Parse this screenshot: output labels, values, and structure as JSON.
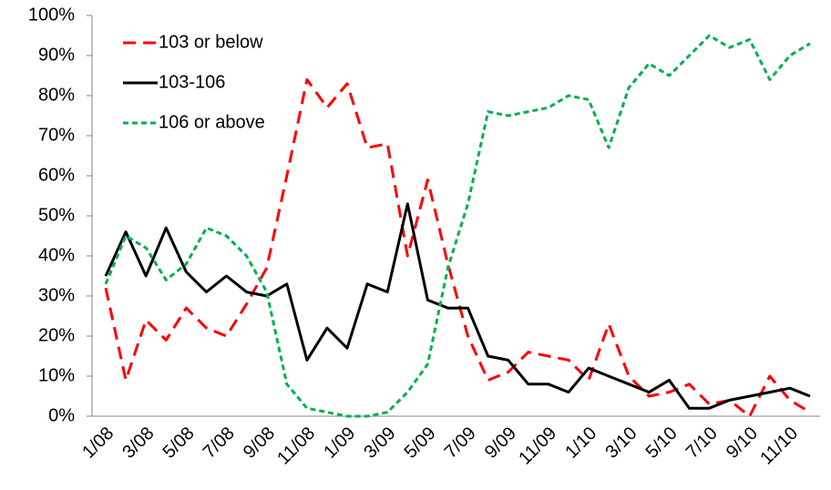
{
  "chart_data": {
    "type": "line",
    "categories": [
      "1/08",
      null,
      "3/08",
      null,
      "5/08",
      null,
      "7/08",
      null,
      "9/08",
      null,
      "11/08",
      null,
      "1/09",
      null,
      "3/09",
      null,
      "5/09",
      null,
      "7/09",
      null,
      "9/09",
      null,
      "11/09",
      null,
      "1/10",
      null,
      "3/10",
      null,
      "5/10",
      null,
      "7/10",
      null,
      "9/10",
      null,
      "11/10",
      null
    ],
    "series": [
      {
        "name": "103 or below",
        "color": "#ff0000",
        "dash": "dashed",
        "values": [
          32,
          9,
          24,
          19,
          27,
          22,
          20,
          28,
          37,
          60,
          84,
          77,
          83,
          67,
          68,
          40,
          59,
          38,
          20,
          9,
          11,
          16,
          15,
          14,
          9,
          23,
          10,
          5,
          6,
          8,
          3,
          4,
          0,
          10,
          4,
          1
        ]
      },
      {
        "name": "103-106",
        "color": "#000000",
        "dash": "solid",
        "values": [
          35,
          46,
          35,
          47,
          36,
          31,
          35,
          31,
          30,
          33,
          14,
          22,
          17,
          33,
          31,
          53,
          29,
          27,
          27,
          15,
          14,
          8,
          8,
          6,
          12,
          10,
          8,
          6,
          9,
          2,
          2,
          4,
          5,
          6,
          7,
          5
        ]
      },
      {
        "name": "106 or above",
        "color": "#00b050",
        "dash": "dotted",
        "values": [
          33,
          45,
          42,
          34,
          38,
          47,
          45,
          40,
          31,
          8,
          2,
          1,
          0,
          0,
          1,
          6,
          13,
          37,
          53,
          76,
          75,
          76,
          77,
          80,
          79,
          67,
          82,
          88,
          85,
          90,
          95,
          92,
          94,
          84,
          90,
          93
        ]
      }
    ],
    "ylim": [
      0,
      100
    ],
    "yticks": [
      {
        "value": 0,
        "label": "0%"
      },
      {
        "value": 10,
        "label": "10%"
      },
      {
        "value": 20,
        "label": "20%"
      },
      {
        "value": 30,
        "label": "30%"
      },
      {
        "value": 40,
        "label": "40%"
      },
      {
        "value": 50,
        "label": "50%"
      },
      {
        "value": 60,
        "label": "60%"
      },
      {
        "value": 70,
        "label": "70%"
      },
      {
        "value": 80,
        "label": "80%"
      },
      {
        "value": 90,
        "label": "90%"
      },
      {
        "value": 100,
        "label": "100%"
      }
    ],
    "grid": false,
    "legend": "upper left"
  }
}
